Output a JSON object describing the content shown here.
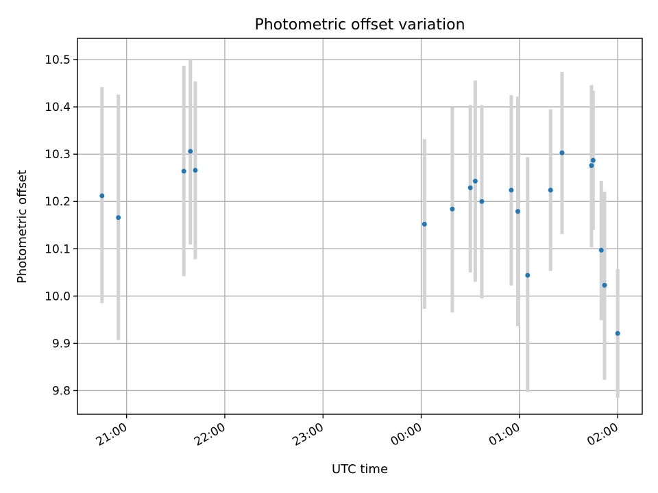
{
  "chart_data": {
    "type": "scatter",
    "title": "Photometric offset variation",
    "xlabel": "UTC time",
    "ylabel": "Photometric offset",
    "x_axis": {
      "type": "time",
      "range": [
        "20:30",
        "02:15"
      ],
      "ticks": [
        "21:00",
        "22:00",
        "23:00",
        "00:00",
        "01:00",
        "02:00"
      ]
    },
    "y_axis": {
      "range": [
        9.75,
        10.545
      ],
      "ticks": [
        9.8,
        9.9,
        10.0,
        10.1,
        10.2,
        10.3,
        10.4,
        10.5
      ],
      "tick_labels": [
        "9.8",
        "9.9",
        "10.0",
        "10.1",
        "10.2",
        "10.3",
        "10.4",
        "10.5"
      ]
    },
    "grid": true,
    "colors": {
      "point": "#1f77b4",
      "errorbar": "#d3d3d3"
    },
    "series": [
      {
        "points": [
          {
            "x": "20:45",
            "y": 10.212,
            "ylow": 9.985,
            "yhigh": 10.442
          },
          {
            "x": "20:55",
            "y": 10.166,
            "ylow": 9.907,
            "yhigh": 10.426
          },
          {
            "x": "21:35",
            "y": 10.264,
            "ylow": 10.042,
            "yhigh": 10.487
          },
          {
            "x": "21:39",
            "y": 10.306,
            "ylow": 10.109,
            "yhigh": 10.502
          },
          {
            "x": "21:42",
            "y": 10.266,
            "ylow": 10.078,
            "yhigh": 10.454
          },
          {
            "x": "00:02",
            "y": 10.152,
            "ylow": 9.973,
            "yhigh": 10.332
          },
          {
            "x": "00:19",
            "y": 10.184,
            "ylow": 9.965,
            "yhigh": 10.399
          },
          {
            "x": "00:30",
            "y": 10.229,
            "ylow": 10.05,
            "yhigh": 10.404
          },
          {
            "x": "00:33",
            "y": 10.243,
            "ylow": 10.03,
            "yhigh": 10.456
          },
          {
            "x": "00:37",
            "y": 10.2,
            "ylow": 9.995,
            "yhigh": 10.404
          },
          {
            "x": "00:55",
            "y": 10.224,
            "ylow": 10.022,
            "yhigh": 10.425
          },
          {
            "x": "00:59",
            "y": 10.179,
            "ylow": 9.936,
            "yhigh": 10.422
          },
          {
            "x": "01:05",
            "y": 10.044,
            "ylow": 9.797,
            "yhigh": 10.294
          },
          {
            "x": "01:19",
            "y": 10.224,
            "ylow": 10.053,
            "yhigh": 10.395
          },
          {
            "x": "01:26",
            "y": 10.303,
            "ylow": 10.131,
            "yhigh": 10.474
          },
          {
            "x": "01:44",
            "y": 10.276,
            "ylow": 10.103,
            "yhigh": 10.446
          },
          {
            "x": "01:45",
            "y": 10.287,
            "ylow": 10.14,
            "yhigh": 10.434
          },
          {
            "x": "01:50",
            "y": 10.097,
            "ylow": 9.949,
            "yhigh": 10.244
          },
          {
            "x": "01:52",
            "y": 10.023,
            "ylow": 9.823,
            "yhigh": 10.221
          },
          {
            "x": "02:00",
            "y": 9.921,
            "ylow": 9.785,
            "yhigh": 10.057
          }
        ]
      }
    ]
  }
}
